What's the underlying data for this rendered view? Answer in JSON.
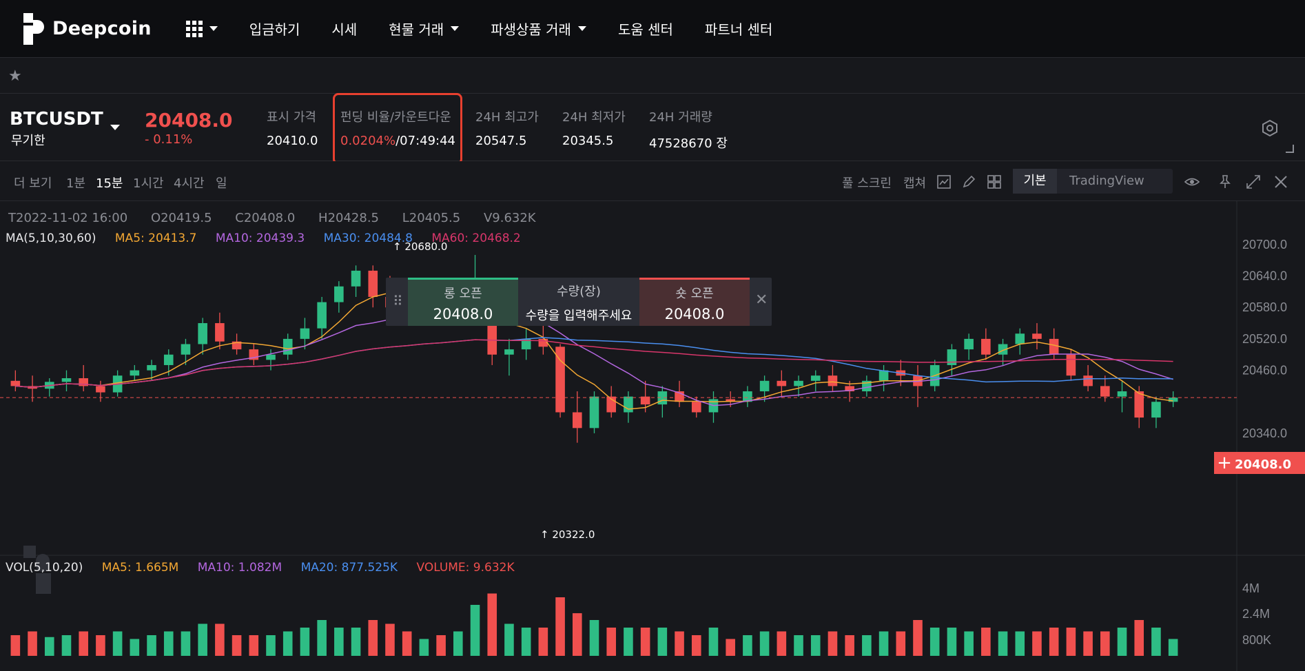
{
  "nav": {
    "logo": "Deepcoin",
    "items": [
      {
        "label": "입금하기",
        "dropdown": false
      },
      {
        "label": "시세",
        "dropdown": false
      },
      {
        "label": "현물 거래",
        "dropdown": true
      },
      {
        "label": "파생상품 거래",
        "dropdown": true
      },
      {
        "label": "도움 센터",
        "dropdown": false
      },
      {
        "label": "파트너 센터",
        "dropdown": false
      }
    ]
  },
  "ticker": {
    "symbol": "BTCUSDT",
    "contract_type": "무기한",
    "last_price": "20408.0",
    "change": "- 0.11%",
    "mark_label": "표시 가격",
    "mark_value": "20410.0",
    "funding_label": "펀딩 비율/카운트다운",
    "funding_rate": "0.0204%",
    "countdown": "/07:49:44",
    "high_label": "24H 최고가",
    "high_value": "20547.5",
    "low_label": "24H 최저가",
    "low_value": "20345.5",
    "volume_label": "24H 거래량",
    "volume_value": "47528670 장"
  },
  "toolbar": {
    "more": "더 보기",
    "intervals": [
      "1분",
      "15분",
      "1시간",
      "4시간",
      "일"
    ],
    "active_interval": "15분",
    "fullscreen": "풀 스크린",
    "capture": "캡쳐",
    "mode_basic": "기본",
    "mode_tv": "TradingView"
  },
  "ohlc": {
    "t": "T2022-11-02 16:00",
    "o": "O20419.5",
    "c": "C20408.0",
    "h": "H20428.5",
    "l": "L20405.5",
    "v": "V9.632K"
  },
  "ma": {
    "title": "MA(5,10,30,60)",
    "ma5": "MA5: 20413.7",
    "ma10": "MA10: 20439.3",
    "ma30": "MA30: 20484.8",
    "ma60": "MA60: 20468.2"
  },
  "vol": {
    "title": "VOL(5,10,20)",
    "ma5": "MA5: 1.665M",
    "ma10": "MA10: 1.082M",
    "ma20": "MA20: 877.525K",
    "volume": "VOLUME: 9.632K"
  },
  "order": {
    "long_label": "롱 오픈",
    "long_price": "20408.0",
    "qty_label": "수량(장)",
    "qty_placeholder": "수량을 입력해주세요",
    "short_label": "숏 오픈",
    "short_price": "20408.0"
  },
  "markers": {
    "high": "20680.0",
    "low": "20322.0"
  },
  "colors": {
    "up": "#2ebd85",
    "down": "#f0504e",
    "ma5": "#f4a833",
    "ma10": "#b467e0",
    "ma30": "#4a8ff0",
    "ma60": "#d9366b"
  },
  "chart_data": {
    "type": "candlestick",
    "price_axis": [
      "20700.0",
      "20640.0",
      "20580.0",
      "20520.0",
      "20460.0",
      "20340.0"
    ],
    "price_range": [
      20290,
      20730
    ],
    "volume_axis": [
      "4M",
      "2.4M",
      "800K"
    ],
    "current_price": "20408.0",
    "candles_approx": [
      [
        20440,
        20460,
        20420,
        20430
      ],
      [
        20430,
        20450,
        20400,
        20425
      ],
      [
        20425,
        20445,
        20410,
        20438
      ],
      [
        20438,
        20460,
        20420,
        20445
      ],
      [
        20445,
        20470,
        20420,
        20430
      ],
      [
        20430,
        20440,
        20400,
        20418
      ],
      [
        20418,
        20460,
        20410,
        20450
      ],
      [
        20450,
        20470,
        20440,
        20460
      ],
      [
        20460,
        20480,
        20440,
        20470
      ],
      [
        20470,
        20500,
        20450,
        20490
      ],
      [
        20490,
        20520,
        20470,
        20510
      ],
      [
        20510,
        20560,
        20490,
        20550
      ],
      [
        20550,
        20570,
        20500,
        20515
      ],
      [
        20515,
        20530,
        20490,
        20500
      ],
      [
        20500,
        20510,
        20470,
        20480
      ],
      [
        20480,
        20500,
        20460,
        20490
      ],
      [
        20490,
        20530,
        20480,
        20520
      ],
      [
        20520,
        20560,
        20500,
        20540
      ],
      [
        20540,
        20600,
        20520,
        20590
      ],
      [
        20590,
        20630,
        20570,
        20620
      ],
      [
        20620,
        20660,
        20600,
        20650
      ],
      [
        20650,
        20660,
        20580,
        20600
      ],
      [
        20600,
        20640,
        20570,
        20580
      ],
      [
        20580,
        20600,
        20550,
        20570
      ],
      [
        20570,
        20590,
        20560,
        20585
      ],
      [
        20585,
        20600,
        20560,
        20570
      ],
      [
        20570,
        20600,
        20550,
        20590
      ],
      [
        20590,
        20680,
        20560,
        20600
      ],
      [
        20600,
        20620,
        20470,
        20490
      ],
      [
        20490,
        20520,
        20450,
        20500
      ],
      [
        20500,
        20540,
        20480,
        20520
      ],
      [
        20520,
        20550,
        20490,
        20505
      ],
      [
        20505,
        20510,
        20370,
        20380
      ],
      [
        20380,
        20420,
        20322,
        20350
      ],
      [
        20350,
        20420,
        20340,
        20410
      ],
      [
        20410,
        20430,
        20370,
        20380
      ],
      [
        20380,
        20420,
        20360,
        20410
      ],
      [
        20410,
        20440,
        20380,
        20395
      ],
      [
        20395,
        20430,
        20370,
        20420
      ],
      [
        20420,
        20440,
        20390,
        20400
      ],
      [
        20400,
        20410,
        20370,
        20380
      ],
      [
        20380,
        20420,
        20360,
        20405
      ],
      [
        20405,
        20420,
        20390,
        20400
      ],
      [
        20400,
        20430,
        20390,
        20420
      ],
      [
        20420,
        20450,
        20400,
        20440
      ],
      [
        20440,
        20460,
        20410,
        20430
      ],
      [
        20430,
        20450,
        20410,
        20440
      ],
      [
        20440,
        20460,
        20420,
        20450
      ],
      [
        20450,
        20470,
        20420,
        20430
      ],
      [
        20430,
        20440,
        20400,
        20420
      ],
      [
        20420,
        20450,
        20410,
        20440
      ],
      [
        20440,
        20470,
        20420,
        20460
      ],
      [
        20460,
        20480,
        20430,
        20450
      ],
      [
        20450,
        20470,
        20390,
        20430
      ],
      [
        20430,
        20480,
        20420,
        20470
      ],
      [
        20470,
        20510,
        20450,
        20500
      ],
      [
        20500,
        20530,
        20480,
        20520
      ],
      [
        20520,
        20540,
        20480,
        20490
      ],
      [
        20490,
        20520,
        20470,
        20510
      ],
      [
        20510,
        20540,
        20490,
        20530
      ],
      [
        20530,
        20550,
        20500,
        20520
      ],
      [
        20520,
        20540,
        20480,
        20490
      ],
      [
        20490,
        20500,
        20440,
        20450
      ],
      [
        20450,
        20470,
        20420,
        20430
      ],
      [
        20430,
        20450,
        20400,
        20410
      ],
      [
        20410,
        20440,
        20380,
        20420
      ],
      [
        20420,
        20430,
        20350,
        20370
      ],
      [
        20370,
        20410,
        20350,
        20400
      ],
      [
        20400,
        20420,
        20390,
        20408
      ]
    ]
  }
}
